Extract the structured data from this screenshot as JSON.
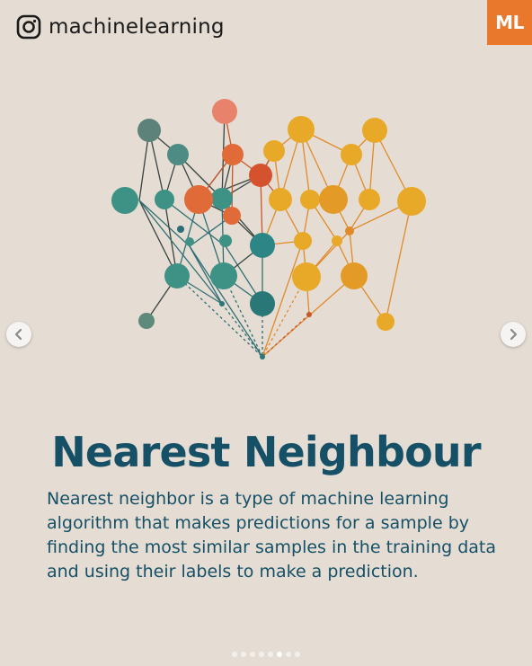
{
  "header": {
    "handle": "machinelearning",
    "icon": "instagram-icon"
  },
  "logo": {
    "text": "ML",
    "color": "#e9782c"
  },
  "slide": {
    "title": "Nearest Neighbour",
    "description": "Nearest neighbor is a type of machine learning algorithm that makes predictions for a sample by finding the most similar samples in the training data and using their labels to make a prediction."
  },
  "carousel": {
    "total_slides": 8,
    "active_slide": 6
  },
  "colors": {
    "background": "#e5ddd3",
    "title": "#155067",
    "teal": "#3d9185",
    "orange": "#e06a38",
    "yellow": "#e8a928"
  }
}
